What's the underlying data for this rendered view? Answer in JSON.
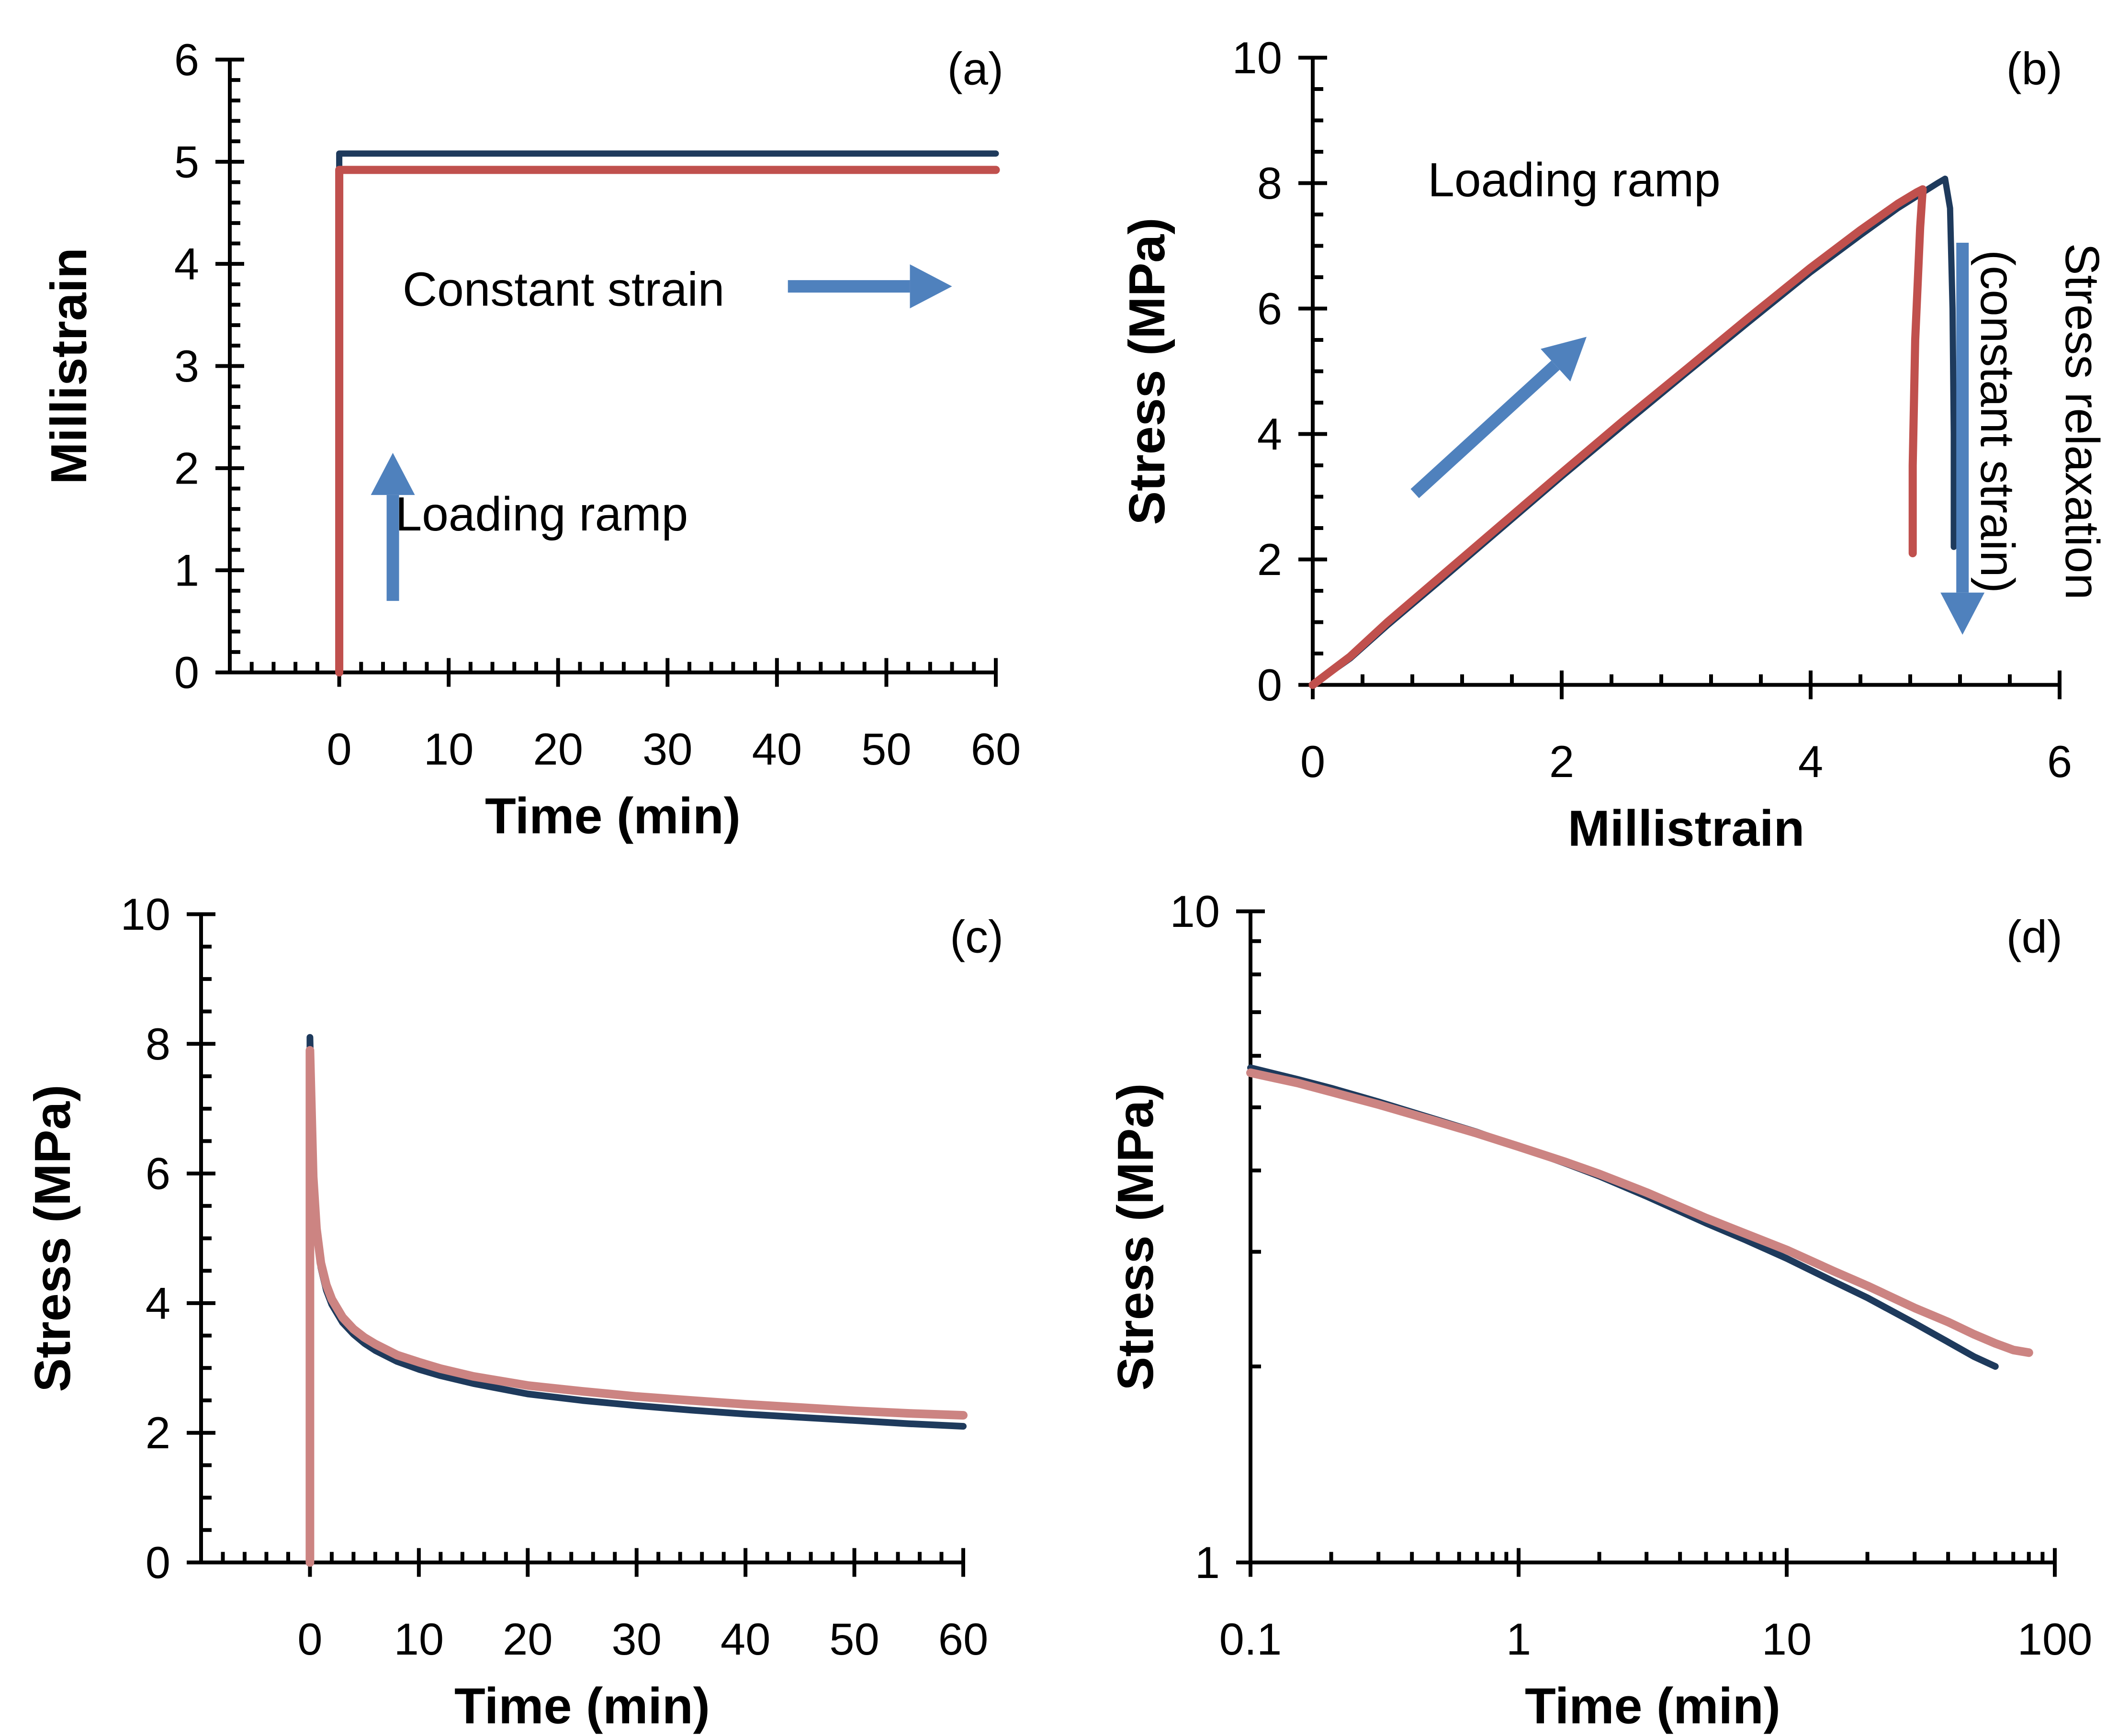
{
  "figure": {
    "background": "#ffffff"
  },
  "colors": {
    "navy": "#1e3a5c",
    "red": "#c0504d",
    "pink": "#cc8482",
    "arrow": "#4f81bd",
    "axis": "#000000",
    "text": "#000000"
  },
  "chart_data": [
    {
      "id": "a",
      "type": "line",
      "panel_label": "(a)",
      "xlabel": "Time (min)",
      "ylabel": "Millistrain",
      "x_axis": {
        "scale": "linear",
        "min": -10,
        "max": 60,
        "major": [
          0,
          10,
          20,
          30,
          40,
          50,
          60
        ],
        "major_labels": [
          "0",
          "10",
          "20",
          "30",
          "40",
          "50",
          "60"
        ],
        "minor_step": 2
      },
      "y_axis": {
        "scale": "linear",
        "min": 0,
        "max": 6,
        "major": [
          0,
          1,
          2,
          3,
          4,
          5,
          6
        ],
        "major_labels": [
          "0",
          "1",
          "2",
          "3",
          "4",
          "5",
          "6"
        ],
        "minor_step": 0.2
      },
      "series": [
        {
          "name": "strain-step-navy",
          "color": "navy",
          "width": 6.5,
          "points": [
            [
              0,
              4.55
            ],
            [
              0,
              5.08
            ],
            [
              60,
              5.08
            ]
          ]
        },
        {
          "name": "strain-step-red",
          "color": "red",
          "width": 8.5,
          "points": [
            [
              0,
              0
            ],
            [
              0,
              4.92
            ],
            [
              60,
              4.92
            ]
          ]
        }
      ],
      "annotations": [
        {
          "type": "text",
          "text": "Constant strain",
          "x": 20.5,
          "y": 3.75,
          "size": 50
        },
        {
          "type": "arrow",
          "x1": 41,
          "y1": 3.78,
          "x2": 56,
          "y2": 3.78
        },
        {
          "type": "text",
          "text": "Loading ramp",
          "x": 18.5,
          "y": 1.55,
          "size": 50
        },
        {
          "type": "arrow",
          "x1": 4.9,
          "y1": 0.7,
          "x2": 4.9,
          "y2": 2.15
        }
      ]
    },
    {
      "id": "b",
      "type": "line",
      "panel_label": "(b)",
      "xlabel": "Millistrain",
      "ylabel": "Stress (MPa)",
      "x_axis": {
        "scale": "linear",
        "min": 0,
        "max": 6,
        "major": [
          0,
          2,
          4,
          6
        ],
        "major_labels": [
          "0",
          "2",
          "4",
          "6"
        ],
        "minor_step": 0.4
      },
      "y_axis": {
        "scale": "linear",
        "min": 0,
        "max": 10,
        "major": [
          0,
          2,
          4,
          6,
          8,
          10
        ],
        "major_labels": [
          "0",
          "2",
          "4",
          "6",
          "8",
          "10"
        ],
        "minor_step": 0.5
      },
      "series": [
        {
          "name": "stress-strain-navy",
          "color": "navy",
          "width": 6.5,
          "points": [
            [
              0,
              0
            ],
            [
              0.3,
              0.42
            ],
            [
              0.6,
              0.95
            ],
            [
              1,
              1.62
            ],
            [
              1.5,
              2.47
            ],
            [
              2,
              3.32
            ],
            [
              2.5,
              4.15
            ],
            [
              3,
              4.97
            ],
            [
              3.5,
              5.78
            ],
            [
              4,
              6.58
            ],
            [
              4.4,
              7.17
            ],
            [
              4.7,
              7.6
            ],
            [
              4.9,
              7.85
            ],
            [
              5.02,
              8.0
            ],
            [
              5.08,
              8.07
            ],
            [
              5.12,
              7.6
            ],
            [
              5.14,
              6.0
            ],
            [
              5.15,
              4.0
            ],
            [
              5.15,
              2.2
            ]
          ]
        },
        {
          "name": "stress-strain-red",
          "color": "red",
          "width": 8.5,
          "points": [
            [
              0,
              0
            ],
            [
              0.3,
              0.45
            ],
            [
              0.6,
              1.0
            ],
            [
              1,
              1.68
            ],
            [
              1.5,
              2.53
            ],
            [
              2,
              3.38
            ],
            [
              2.5,
              4.22
            ],
            [
              3,
              5.03
            ],
            [
              3.5,
              5.85
            ],
            [
              4,
              6.65
            ],
            [
              4.4,
              7.25
            ],
            [
              4.7,
              7.67
            ],
            [
              4.85,
              7.85
            ],
            [
              4.9,
              7.9
            ],
            [
              4.88,
              7.3
            ],
            [
              4.84,
              5.5
            ],
            [
              4.82,
              3.5
            ],
            [
              4.82,
              2.1
            ]
          ]
        }
      ],
      "annotations": [
        {
          "type": "text",
          "text": "Loading ramp",
          "x": 2.1,
          "y": 8.05,
          "size": 50
        },
        {
          "type": "arrow",
          "x1": 0.82,
          "y1": 3.05,
          "x2": 2.2,
          "y2": 5.55
        },
        {
          "type": "arrow",
          "x1": 5.22,
          "y1": 7.05,
          "x2": 5.22,
          "y2": 0.8
        },
        {
          "type": "text",
          "text": "Stress relaxation",
          "x": 6.18,
          "y": 4.2,
          "size": 50,
          "rotate": 90
        },
        {
          "type": "text",
          "text": "(constant strain)",
          "x": 5.5,
          "y": 4.2,
          "size": 50,
          "rotate": 90
        }
      ]
    },
    {
      "id": "c",
      "type": "line",
      "panel_label": "(c)",
      "xlabel": "Time (min)",
      "ylabel": "Stress (MPa)",
      "x_axis": {
        "scale": "linear",
        "min": -10,
        "max": 60,
        "major": [
          0,
          10,
          20,
          30,
          40,
          50,
          60
        ],
        "major_labels": [
          "0",
          "10",
          "20",
          "30",
          "40",
          "50",
          "60"
        ],
        "minor_step": 2
      },
      "y_axis": {
        "scale": "linear",
        "min": 0,
        "max": 10,
        "major": [
          0,
          2,
          4,
          6,
          8,
          10
        ],
        "major_labels": [
          "0",
          "2",
          "4",
          "6",
          "8",
          "10"
        ],
        "minor_step": 0.5
      },
      "series": [
        {
          "name": "relaxation-navy",
          "color": "navy",
          "width": 7,
          "points": [
            [
              0,
              0
            ],
            [
              0,
              8.1
            ],
            [
              0.3,
              5.9
            ],
            [
              0.6,
              5.1
            ],
            [
              1,
              4.55
            ],
            [
              1.5,
              4.2
            ],
            [
              2,
              3.98
            ],
            [
              3,
              3.7
            ],
            [
              4,
              3.52
            ],
            [
              5,
              3.38
            ],
            [
              6,
              3.27
            ],
            [
              8,
              3.1
            ],
            [
              10,
              2.98
            ],
            [
              12,
              2.88
            ],
            [
              15,
              2.76
            ],
            [
              20,
              2.6
            ],
            [
              25,
              2.5
            ],
            [
              30,
              2.42
            ],
            [
              35,
              2.35
            ],
            [
              40,
              2.29
            ],
            [
              45,
              2.24
            ],
            [
              50,
              2.19
            ],
            [
              55,
              2.14
            ],
            [
              60,
              2.1
            ]
          ]
        },
        {
          "name": "relaxation-pink",
          "color": "pink",
          "width": 9,
          "points": [
            [
              0,
              0
            ],
            [
              0,
              7.9
            ],
            [
              0.3,
              5.95
            ],
            [
              0.6,
              5.15
            ],
            [
              1,
              4.62
            ],
            [
              1.5,
              4.28
            ],
            [
              2,
              4.06
            ],
            [
              3,
              3.78
            ],
            [
              4,
              3.6
            ],
            [
              5,
              3.47
            ],
            [
              6,
              3.37
            ],
            [
              8,
              3.2
            ],
            [
              10,
              3.09
            ],
            [
              12,
              2.99
            ],
            [
              15,
              2.87
            ],
            [
              20,
              2.73
            ],
            [
              25,
              2.64
            ],
            [
              30,
              2.56
            ],
            [
              35,
              2.5
            ],
            [
              40,
              2.44
            ],
            [
              45,
              2.39
            ],
            [
              50,
              2.34
            ],
            [
              55,
              2.3
            ],
            [
              60,
              2.27
            ]
          ]
        }
      ],
      "annotations": []
    },
    {
      "id": "d",
      "type": "line",
      "panel_label": "(d)",
      "xlabel": "Time (min)",
      "ylabel": "Stress (MPa)",
      "x_axis": {
        "scale": "log",
        "min": 0.1,
        "max": 100,
        "major": [
          0.1,
          1,
          10,
          100
        ],
        "major_labels": [
          "0.1",
          "1",
          "10",
          "100"
        ]
      },
      "y_axis": {
        "scale": "log",
        "min": 1,
        "max": 10,
        "major": [
          1,
          10
        ],
        "major_labels": [
          "1",
          "10"
        ]
      },
      "series": [
        {
          "name": "relaxation-loglog-navy",
          "color": "navy",
          "width": 7,
          "points": [
            [
              0.1,
              5.75
            ],
            [
              0.15,
              5.52
            ],
            [
              0.2,
              5.35
            ],
            [
              0.3,
              5.1
            ],
            [
              0.5,
              4.78
            ],
            [
              0.7,
              4.58
            ],
            [
              1,
              4.35
            ],
            [
              1.5,
              4.1
            ],
            [
              2,
              3.92
            ],
            [
              3,
              3.65
            ],
            [
              5,
              3.32
            ],
            [
              7,
              3.13
            ],
            [
              10,
              2.93
            ],
            [
              15,
              2.7
            ],
            [
              20,
              2.55
            ],
            [
              30,
              2.33
            ],
            [
              40,
              2.18
            ],
            [
              50,
              2.07
            ],
            [
              60,
              2.0
            ]
          ]
        },
        {
          "name": "relaxation-loglog-pink",
          "color": "pink",
          "width": 9,
          "points": [
            [
              0.1,
              5.65
            ],
            [
              0.15,
              5.45
            ],
            [
              0.2,
              5.28
            ],
            [
              0.3,
              5.05
            ],
            [
              0.5,
              4.75
            ],
            [
              0.7,
              4.56
            ],
            [
              1,
              4.35
            ],
            [
              1.5,
              4.12
            ],
            [
              2,
              3.95
            ],
            [
              3,
              3.7
            ],
            [
              5,
              3.38
            ],
            [
              7,
              3.2
            ],
            [
              10,
              3.02
            ],
            [
              15,
              2.8
            ],
            [
              20,
              2.66
            ],
            [
              30,
              2.46
            ],
            [
              40,
              2.34
            ],
            [
              50,
              2.24
            ],
            [
              60,
              2.17
            ],
            [
              70,
              2.12
            ],
            [
              80,
              2.1
            ]
          ]
        }
      ],
      "annotations": []
    }
  ]
}
